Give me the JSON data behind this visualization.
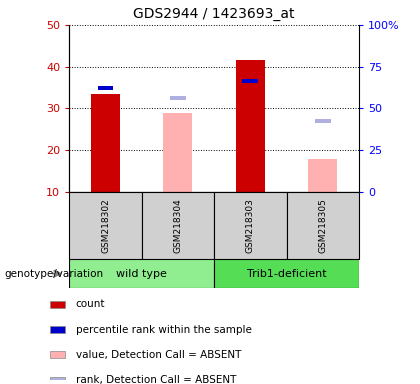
{
  "title": "GDS2944 / 1423693_at",
  "samples": [
    "GSM218302",
    "GSM218304",
    "GSM218303",
    "GSM218305"
  ],
  "ylim": [
    10,
    50
  ],
  "yticks": [
    10,
    20,
    30,
    40,
    50
  ],
  "y2lim": [
    0,
    100
  ],
  "y2ticks": [
    0,
    25,
    50,
    75,
    100
  ],
  "red_bars": [
    33.5,
    null,
    41.5,
    null
  ],
  "blue_squares": [
    35.0,
    null,
    36.5,
    null
  ],
  "pink_bars": [
    null,
    29.0,
    null,
    18.0
  ],
  "lavender_squares": [
    null,
    32.5,
    null,
    27.0
  ],
  "bar_width": 0.4,
  "red_color": "#cc0000",
  "blue_color": "#0000cc",
  "pink_color": "#ffb0b0",
  "lavender_color": "#b0b0e0",
  "wild_type_color": "#90EE90",
  "trib1_color": "#55dd55",
  "sample_bg": "#d0d0d0",
  "wild_type_label": "wild type",
  "trib1_label": "Trib1-deficient",
  "genotype_label": "genotype/variation",
  "legend_items": [
    {
      "label": "count",
      "color": "#cc0000"
    },
    {
      "label": "percentile rank within the sample",
      "color": "#0000cc"
    },
    {
      "label": "value, Detection Call = ABSENT",
      "color": "#ffb0b0"
    },
    {
      "label": "rank, Detection Call = ABSENT",
      "color": "#b0b0e0"
    }
  ]
}
